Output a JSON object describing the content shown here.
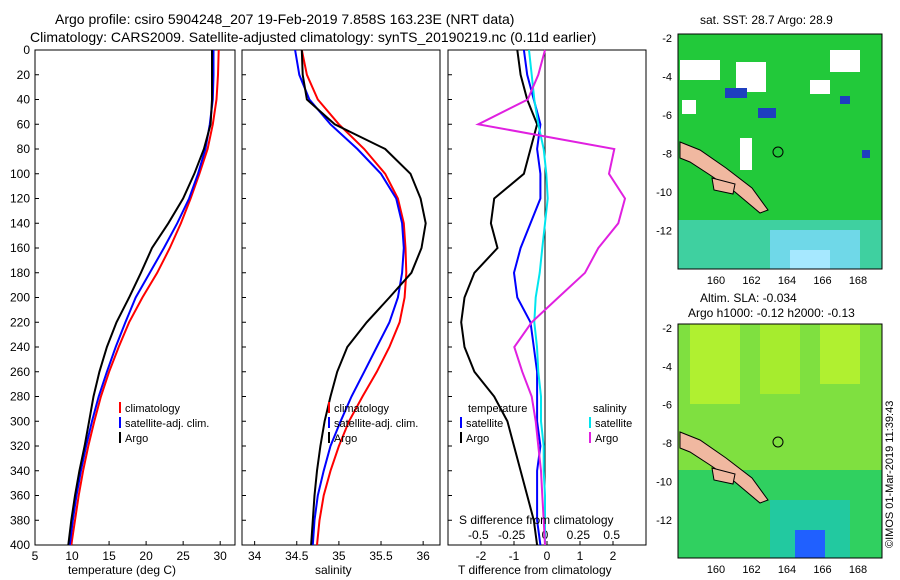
{
  "header": {
    "title_line1": "Argo profile: csiro 5904248_207 19-Feb-2019 7.858S 163.23E (NRT data)",
    "title_line2": "Climatology: CARS2009. Satellite-adjusted climatology: synTS_20190219.nc (0.11d earlier)"
  },
  "footer": {
    "credit": "©IMOS 01-Mar-2019 11:39:43"
  },
  "colors": {
    "climatology": "#ff0000",
    "satellite": "#0000ff",
    "argo": "#000000",
    "sat_s": "#00e5ee",
    "argo_s": "#e020e0"
  },
  "panels": {
    "temperature": {
      "xlabel": "temperature (deg C)",
      "xticks": [
        "5",
        "10",
        "15",
        "20",
        "25",
        "30"
      ],
      "legend": [
        "climatology",
        "satellite-adj. clim.",
        "Argo"
      ]
    },
    "salinity": {
      "xlabel": "salinity",
      "xticks": [
        "34",
        "34.5",
        "35",
        "35.5",
        "36"
      ],
      "legend": [
        "climatology",
        "satellite-adj. clim.",
        "Argo"
      ]
    },
    "difference": {
      "xlabel": "T difference from climatology",
      "top_label": "S difference from climatology",
      "xticks": [
        "-2",
        "-1",
        "0",
        "1",
        "2"
      ],
      "sticks": [
        "-0.5",
        "-0.25",
        "0",
        "0.25",
        "0.5"
      ],
      "legend_head_left": "temperature",
      "legend_head_right": "salinity",
      "legend_left": [
        "satellite",
        "Argo"
      ],
      "legend_right": [
        "satellite",
        "Argo"
      ]
    },
    "depth_ticks": [
      "0",
      "20",
      "40",
      "60",
      "80",
      "100",
      "120",
      "140",
      "160",
      "180",
      "200",
      "220",
      "240",
      "260",
      "280",
      "300",
      "320",
      "340",
      "360",
      "380",
      "400"
    ]
  },
  "maps": {
    "sst": {
      "title": "sat. SST: 28.7 Argo: 28.9",
      "yticks": [
        "-2",
        "-4",
        "-6",
        "-8",
        "-10",
        "-12"
      ],
      "xticks": [
        "160",
        "162",
        "164",
        "166",
        "168"
      ]
    },
    "sla": {
      "title1": "Altim. SLA: -0.034",
      "title2": "Argo h1000: -0.12 h2000: -0.13",
      "yticks": [
        "-2",
        "-4",
        "-6",
        "-8",
        "-10",
        "-12"
      ],
      "xticks": [
        "160",
        "162",
        "164",
        "166",
        "168"
      ]
    }
  },
  "chart_data": [
    {
      "type": "line",
      "title": "temperature profile",
      "xlabel": "temperature (deg C)",
      "ylabel": "depth",
      "xlim": [
        5,
        32
      ],
      "ylim": [
        400,
        0
      ],
      "series": [
        {
          "name": "climatology",
          "color": "#ff0000",
          "x": [
            29.8,
            29.7,
            29.5,
            29.0,
            28.3,
            27.2,
            26.0,
            24.7,
            23.2,
            21.5,
            19.5,
            17.7,
            16.3,
            15.0,
            13.9,
            13.0,
            12.2,
            11.5,
            10.9,
            10.4,
            9.9
          ],
          "depth": [
            0,
            20,
            40,
            60,
            80,
            100,
            120,
            140,
            160,
            180,
            200,
            220,
            240,
            260,
            280,
            300,
            320,
            340,
            360,
            380,
            400
          ]
        },
        {
          "name": "satellite-adj. clim.",
          "color": "#0000ff",
          "x": [
            29.1,
            29.1,
            29.0,
            28.6,
            28.0,
            27.0,
            25.8,
            24.2,
            22.4,
            20.5,
            18.6,
            17.2,
            15.9,
            14.7,
            13.6,
            12.7,
            11.9,
            11.2,
            10.6,
            10.1,
            9.7
          ],
          "depth": [
            0,
            20,
            40,
            60,
            80,
            100,
            120,
            140,
            160,
            180,
            200,
            220,
            240,
            260,
            280,
            300,
            320,
            340,
            360,
            380,
            400
          ]
        },
        {
          "name": "Argo",
          "color": "#000000",
          "x": [
            28.9,
            28.9,
            28.9,
            28.7,
            27.8,
            26.5,
            25.0,
            23.0,
            20.8,
            19.3,
            17.7,
            16.0,
            14.7,
            13.7,
            12.9,
            12.3,
            11.7,
            11.0,
            10.4,
            9.9,
            9.5
          ],
          "depth": [
            0,
            20,
            40,
            60,
            80,
            100,
            120,
            140,
            160,
            180,
            200,
            220,
            240,
            260,
            280,
            300,
            320,
            340,
            360,
            380,
            400
          ]
        }
      ]
    },
    {
      "type": "line",
      "title": "salinity profile",
      "xlabel": "salinity",
      "ylabel": "depth",
      "xlim": [
        33.85,
        36.2
      ],
      "ylim": [
        400,
        0
      ],
      "series": [
        {
          "name": "climatology",
          "color": "#ff0000",
          "x": [
            34.56,
            34.62,
            34.75,
            35.0,
            35.3,
            35.55,
            35.7,
            35.77,
            35.79,
            35.8,
            35.78,
            35.72,
            35.6,
            35.45,
            35.28,
            35.12,
            35.0,
            34.9,
            34.82,
            34.77,
            34.74
          ],
          "depth": [
            0,
            20,
            40,
            60,
            80,
            100,
            120,
            140,
            160,
            180,
            200,
            220,
            240,
            260,
            280,
            300,
            320,
            340,
            360,
            380,
            400
          ]
        },
        {
          "name": "satellite-adj. clim.",
          "color": "#0000ff",
          "x": [
            34.48,
            34.53,
            34.65,
            34.9,
            35.22,
            35.5,
            35.68,
            35.75,
            35.77,
            35.75,
            35.7,
            35.6,
            35.45,
            35.3,
            35.15,
            35.02,
            34.9,
            34.82,
            34.75,
            34.71,
            34.69
          ],
          "depth": [
            0,
            20,
            40,
            60,
            80,
            100,
            120,
            140,
            160,
            180,
            200,
            220,
            240,
            260,
            280,
            300,
            320,
            340,
            360,
            380,
            400
          ]
        },
        {
          "name": "Argo",
          "color": "#000000",
          "x": [
            34.56,
            34.57,
            34.62,
            34.95,
            35.55,
            35.85,
            35.97,
            36.03,
            35.98,
            35.86,
            35.6,
            35.33,
            35.1,
            34.98,
            34.9,
            34.83,
            34.78,
            34.74,
            34.71,
            34.69,
            34.67
          ],
          "depth": [
            0,
            20,
            40,
            60,
            80,
            100,
            120,
            140,
            160,
            180,
            200,
            220,
            240,
            260,
            280,
            300,
            320,
            340,
            360,
            380,
            400
          ]
        }
      ]
    },
    {
      "type": "line",
      "title": "differences from climatology",
      "xlabel": "T difference from climatology",
      "top_xlabel": "S difference from climatology",
      "ylabel": "depth",
      "xlim": [
        -3,
        3
      ],
      "ylim": [
        400,
        0
      ],
      "series": [
        {
          "name": "temperature satellite",
          "color": "#0000ff",
          "x": [
            -0.7,
            -0.6,
            -0.4,
            -0.2,
            -0.3,
            -0.2,
            -0.2,
            -0.5,
            -0.8,
            -1.0,
            -0.9,
            -0.5,
            -0.4,
            -0.3,
            -0.3,
            -0.3,
            -0.2,
            -0.3,
            -0.3,
            -0.3,
            -0.2
          ],
          "depth": [
            0,
            20,
            40,
            60,
            80,
            100,
            120,
            140,
            160,
            180,
            200,
            220,
            240,
            260,
            280,
            300,
            320,
            340,
            360,
            380,
            400
          ]
        },
        {
          "name": "temperature Argo",
          "color": "#000000",
          "x": [
            -0.9,
            -0.8,
            -0.6,
            -0.3,
            -0.5,
            -0.7,
            -1.6,
            -1.7,
            -1.5,
            -2.2,
            -2.5,
            -2.6,
            -2.5,
            -2.2,
            -1.6,
            -1.2,
            -1.0,
            -0.8,
            -0.6,
            -0.4,
            -0.3
          ],
          "depth": [
            0,
            20,
            40,
            60,
            80,
            100,
            120,
            140,
            160,
            180,
            200,
            220,
            240,
            260,
            280,
            300,
            320,
            340,
            360,
            380,
            400
          ]
        },
        {
          "name": "salinity satellite",
          "color": "#00e5ee",
          "x": [
            -0.12,
            -0.1,
            -0.08,
            -0.05,
            -0.01,
            0.01,
            0.02,
            0.0,
            -0.02,
            -0.04,
            -0.07,
            -0.08,
            -0.06,
            -0.05,
            -0.03,
            -0.03,
            -0.01,
            -0.01,
            0.0,
            0.0,
            0.0
          ],
          "depth": [
            0,
            20,
            40,
            60,
            80,
            100,
            120,
            140,
            160,
            180,
            200,
            220,
            240,
            260,
            280,
            300,
            320,
            340,
            360,
            380,
            400
          ]
        },
        {
          "name": "salinity Argo",
          "color": "#e020e0",
          "x": [
            0.0,
            -0.05,
            -0.13,
            -0.5,
            0.52,
            0.48,
            0.6,
            0.55,
            0.4,
            0.3,
            0.1,
            -0.1,
            -0.23,
            -0.17,
            -0.1,
            -0.07,
            -0.05,
            -0.03,
            -0.02,
            -0.01,
            0.0
          ],
          "depth": [
            0,
            20,
            40,
            60,
            80,
            100,
            120,
            140,
            160,
            180,
            200,
            220,
            240,
            260,
            280,
            300,
            320,
            340,
            360,
            380,
            400
          ]
        }
      ]
    }
  ]
}
